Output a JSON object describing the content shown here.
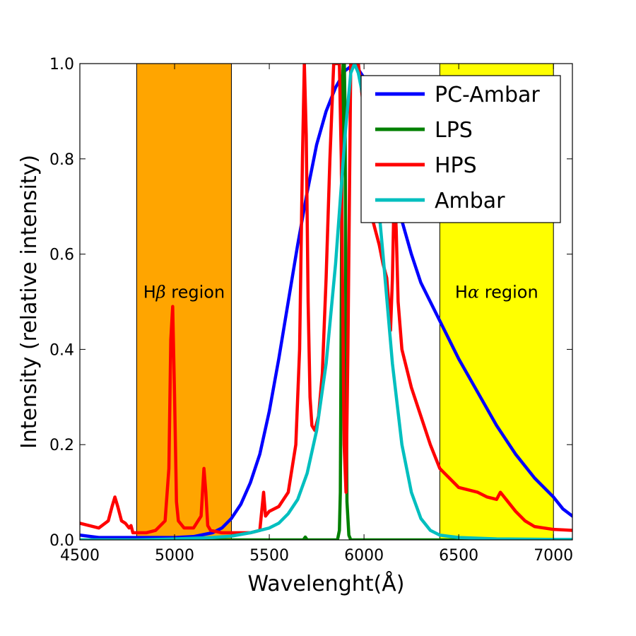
{
  "chart_data": {
    "type": "line",
    "title": "",
    "xlabel": "Wavelenght(Å)",
    "ylabel": "Intensity (relative intensity)",
    "xlim": [
      4500,
      7100
    ],
    "ylim": [
      0.0,
      1.0
    ],
    "xticks": [
      4500,
      5000,
      5500,
      6000,
      6500,
      7000
    ],
    "yticks": [
      0.0,
      0.2,
      0.4,
      0.6,
      0.8,
      1.0
    ],
    "xtick_labels": [
      "4500",
      "5000",
      "5500",
      "6000",
      "6500",
      "7000"
    ],
    "ytick_labels": [
      "0.0",
      "0.2",
      "0.4",
      "0.6",
      "0.8",
      "1.0"
    ],
    "grid": false,
    "legend_position": "top-right",
    "regions": [
      {
        "label_prefix": "H",
        "symbol": "β",
        "label_suffix": " region",
        "x_start": 4800,
        "x_end": 5300,
        "color": "#FFA500"
      },
      {
        "label_prefix": "H",
        "symbol": "α",
        "label_suffix": " region",
        "x_start": 6400,
        "x_end": 7000,
        "color": "#FFFF00"
      }
    ],
    "series": [
      {
        "name": "PC-Ambar",
        "color": "#0000FF",
        "x": [
          4500,
          4600,
          4700,
          4800,
          4900,
          5000,
          5100,
          5200,
          5250,
          5300,
          5350,
          5400,
          5450,
          5500,
          5550,
          5600,
          5650,
          5700,
          5750,
          5800,
          5850,
          5900,
          5950,
          6000,
          6050,
          6100,
          6150,
          6200,
          6250,
          6300,
          6350,
          6400,
          6450,
          6500,
          6600,
          6700,
          6800,
          6900,
          7000,
          7050,
          7100
        ],
        "y": [
          0.01,
          0.005,
          0.005,
          0.005,
          0.005,
          0.005,
          0.007,
          0.015,
          0.025,
          0.045,
          0.075,
          0.12,
          0.18,
          0.27,
          0.38,
          0.5,
          0.62,
          0.73,
          0.83,
          0.9,
          0.95,
          0.985,
          1.0,
          0.97,
          0.9,
          0.82,
          0.74,
          0.67,
          0.6,
          0.54,
          0.5,
          0.46,
          0.42,
          0.38,
          0.31,
          0.24,
          0.18,
          0.13,
          0.09,
          0.065,
          0.05
        ]
      },
      {
        "name": "LPS",
        "color": "#008000",
        "x": [
          4500,
          5600,
          5680,
          5690,
          5700,
          5860,
          5870,
          5875,
          5880,
          5885,
          5890,
          5893,
          5896,
          5900,
          5905,
          5910,
          5920,
          5930,
          6000,
          7100
        ],
        "y": [
          0.0,
          0.0,
          0.0,
          0.006,
          0.0,
          0.0,
          0.02,
          0.1,
          0.5,
          0.95,
          1.0,
          0.8,
          1.0,
          0.9,
          0.4,
          0.08,
          0.01,
          0.0,
          0.0,
          0.0
        ]
      },
      {
        "name": "HPS",
        "color": "#FF0000",
        "x": [
          4500,
          4550,
          4600,
          4650,
          4670,
          4685,
          4700,
          4720,
          4740,
          4760,
          4770,
          4780,
          4800,
          4850,
          4900,
          4950,
          4970,
          4980,
          4990,
          5000,
          5010,
          5020,
          5050,
          5100,
          5140,
          5155,
          5165,
          5175,
          5190,
          5250,
          5300,
          5400,
          5450,
          5460,
          5470,
          5480,
          5500,
          5550,
          5600,
          5640,
          5660,
          5675,
          5685,
          5695,
          5705,
          5715,
          5725,
          5740,
          5760,
          5780,
          5800,
          5820,
          5840,
          5850,
          5860,
          5870,
          5880,
          5895,
          5905,
          5915,
          5930,
          5950,
          5970,
          6000,
          6020,
          6040,
          6060,
          6080,
          6100,
          6120,
          6130,
          6140,
          6150,
          6160,
          6170,
          6180,
          6200,
          6250,
          6300,
          6350,
          6400,
          6450,
          6500,
          6550,
          6600,
          6650,
          6700,
          6720,
          6750,
          6800,
          6850,
          6900,
          7000,
          7100
        ],
        "y": [
          0.035,
          0.03,
          0.025,
          0.04,
          0.07,
          0.09,
          0.07,
          0.04,
          0.035,
          0.025,
          0.03,
          0.015,
          0.015,
          0.015,
          0.02,
          0.04,
          0.15,
          0.42,
          0.49,
          0.3,
          0.08,
          0.04,
          0.025,
          0.025,
          0.05,
          0.15,
          0.1,
          0.03,
          0.02,
          0.015,
          0.015,
          0.015,
          0.02,
          0.06,
          0.1,
          0.05,
          0.06,
          0.07,
          0.1,
          0.2,
          0.4,
          0.8,
          1.0,
          0.85,
          0.5,
          0.3,
          0.24,
          0.23,
          0.26,
          0.35,
          0.55,
          0.8,
          1.0,
          1.0,
          1.0,
          1.0,
          0.8,
          0.2,
          0.1,
          0.4,
          1.0,
          1.0,
          1.0,
          0.9,
          0.75,
          0.68,
          0.65,
          0.62,
          0.58,
          0.55,
          0.5,
          0.44,
          0.55,
          0.75,
          0.65,
          0.5,
          0.4,
          0.32,
          0.26,
          0.2,
          0.15,
          0.13,
          0.11,
          0.105,
          0.1,
          0.09,
          0.085,
          0.1,
          0.085,
          0.06,
          0.04,
          0.028,
          0.022,
          0.02
        ]
      },
      {
        "name": "Ambar",
        "color": "#00BFBF",
        "x": [
          4500,
          4800,
          5000,
          5200,
          5300,
          5400,
          5500,
          5550,
          5600,
          5650,
          5700,
          5750,
          5800,
          5850,
          5900,
          5930,
          5950,
          5970,
          6000,
          6050,
          6100,
          6150,
          6200,
          6250,
          6300,
          6350,
          6400,
          6500,
          6700,
          7000,
          7100
        ],
        "y": [
          0.0,
          0.0,
          0.002,
          0.005,
          0.008,
          0.015,
          0.025,
          0.035,
          0.055,
          0.085,
          0.14,
          0.23,
          0.37,
          0.58,
          0.85,
          0.98,
          1.0,
          0.98,
          0.92,
          0.82,
          0.6,
          0.37,
          0.2,
          0.1,
          0.045,
          0.02,
          0.01,
          0.005,
          0.002,
          0.001,
          0.001
        ]
      }
    ]
  }
}
